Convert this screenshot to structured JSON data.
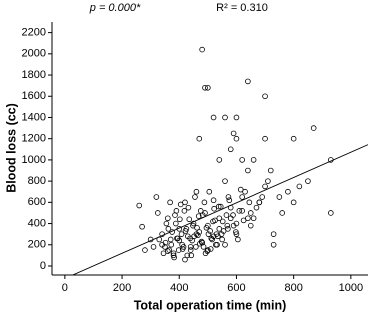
{
  "chart_data": {
    "type": "scatter",
    "annotations": [
      "p = 0.000*",
      "R² = 0.310"
    ],
    "xlabel": "Total operation time (min)",
    "ylabel": "Blood loss (cc)",
    "xlim": [
      -45,
      1060
    ],
    "ylim": [
      -85,
      2300
    ],
    "xticks": [
      0,
      200,
      400,
      600,
      800,
      1000
    ],
    "yticks": [
      0,
      200,
      400,
      600,
      800,
      1000,
      1200,
      1400,
      1600,
      1800,
      2000,
      2200
    ],
    "regression": {
      "intercept": -118,
      "slope": 1.19
    },
    "color": "#000000",
    "x": [
      480,
      490,
      500,
      640,
      700,
      520,
      560,
      600,
      470,
      590,
      600,
      700,
      800,
      870,
      930,
      930,
      800,
      820,
      850,
      780,
      730,
      730,
      260,
      270,
      280,
      300,
      320,
      760,
      640,
      660,
      620,
      540,
      580,
      340,
      350,
      360,
      370,
      380,
      390,
      400,
      410,
      420,
      430,
      440,
      450,
      460,
      470,
      480,
      490,
      500,
      510,
      520,
      530,
      540,
      550,
      560,
      570,
      580,
      600,
      620,
      650,
      680,
      700,
      340,
      355,
      365,
      375,
      385,
      395,
      405,
      415,
      425,
      435,
      445,
      455,
      465,
      475,
      485,
      495,
      505,
      515,
      525,
      535,
      545,
      555,
      565,
      575,
      590,
      610,
      630,
      660,
      690,
      710,
      330,
      345,
      362,
      372,
      388,
      398,
      408,
      418,
      428,
      438,
      448,
      458,
      468,
      478,
      488,
      498,
      508,
      518,
      528,
      538,
      548,
      568,
      588,
      605,
      625,
      645,
      670,
      720,
      750,
      310,
      325,
      352,
      368,
      382,
      392,
      402,
      412,
      422,
      432,
      442,
      452,
      462,
      472,
      482,
      492,
      502,
      512,
      522,
      532,
      552,
      572,
      598,
      615,
      640,
      360,
      380,
      400,
      420,
      440,
      460,
      480,
      500,
      520,
      540,
      560,
      580,
      600,
      620,
      650,
      680
    ],
    "y": [
      2040,
      1680,
      1680,
      1740,
      1600,
      1400,
      1400,
      1400,
      1200,
      1250,
      1200,
      1200,
      1200,
      1300,
      1000,
      500,
      600,
      750,
      800,
      700,
      200,
      300,
      570,
      370,
      150,
      250,
      650,
      500,
      900,
      1000,
      1000,
      1000,
      1100,
      300,
      180,
      450,
      250,
      120,
      520,
      350,
      200,
      600,
      280,
      150,
      400,
      700,
      320,
      220,
      500,
      380,
      160,
      620,
      300,
      450,
      250,
      800,
      350,
      550,
      400,
      650,
      500,
      600,
      750,
      200,
      400,
      150,
      320,
      480,
      260,
      580,
      180,
      350,
      440,
      240,
      650,
      290,
      520,
      180,
      360,
      700,
      250,
      430,
      280,
      560,
      330,
      480,
      620,
      380,
      520,
      700,
      450,
      650,
      800,
      250,
      120,
      350,
      200,
      400,
      150,
      300,
      520,
      100,
      260,
      380,
      180,
      470,
      230,
      600,
      140,
      330,
      420,
      200,
      560,
      300,
      380,
      480,
      250,
      430,
      600,
      550,
      900,
      650,
      180,
      500,
      220,
      600,
      80,
      260,
      440,
      160,
      330,
      550,
      100,
      280,
      360,
      210,
      480,
      120,
      300,
      260,
      540,
      200,
      420,
      650,
      320,
      720,
      450,
      140,
      100,
      240,
      60,
      180,
      300,
      220,
      150,
      280,
      350,
      200,
      450,
      300,
      520,
      380,
      600
    ]
  }
}
